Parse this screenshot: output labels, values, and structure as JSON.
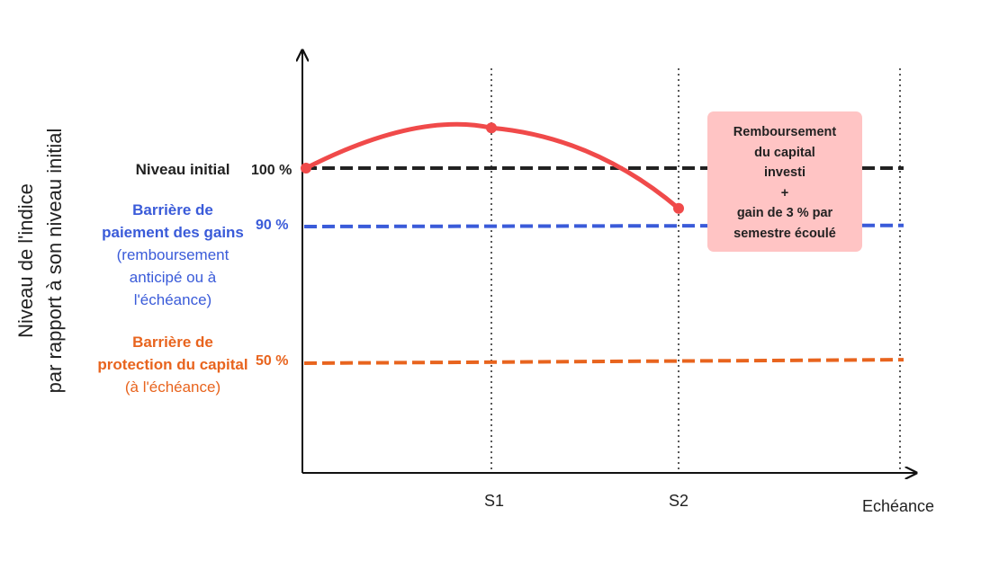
{
  "chart_data": {
    "type": "line",
    "y_axis_title": [
      "Niveau de l'indice",
      "par rapport à son niveau initial"
    ],
    "x_ticks": [
      "S1",
      "S2"
    ],
    "x_end_label": "Echéance",
    "reference_lines": [
      {
        "key": "initial",
        "value": 100,
        "value_label": "100 %",
        "label_lines": [
          "Niveau initial"
        ],
        "color": "#222222",
        "style": "dashed"
      },
      {
        "key": "gains",
        "value": 90,
        "value_label": "90 %",
        "label_lines": [
          "Barrière de",
          "paiement des gains"
        ],
        "sub_label_lines": [
          "(remboursement",
          "anticipé ou à",
          "l'échéance)"
        ],
        "color": "#3a5bd9",
        "style": "dashed"
      },
      {
        "key": "capital",
        "value": 50,
        "value_label": "50 %",
        "label_lines": [
          "Barrière de",
          "protection du capital"
        ],
        "sub_label_lines": [
          "(à l'échéance)"
        ],
        "color": "#e8641e",
        "style": "dashed"
      }
    ],
    "series": [
      {
        "x": [
          0,
          1,
          2
        ],
        "y": [
          100,
          107,
          93
        ],
        "color": "#f04a4a"
      }
    ],
    "x_range": [
      0,
      3.2
    ],
    "y_range": [
      0,
      140
    ],
    "callout": {
      "lines": [
        "Remboursement",
        "du capital",
        "investi",
        "+",
        "gain de 3 % par",
        "semestre écoulé"
      ],
      "color": "#ffc4c4"
    }
  }
}
